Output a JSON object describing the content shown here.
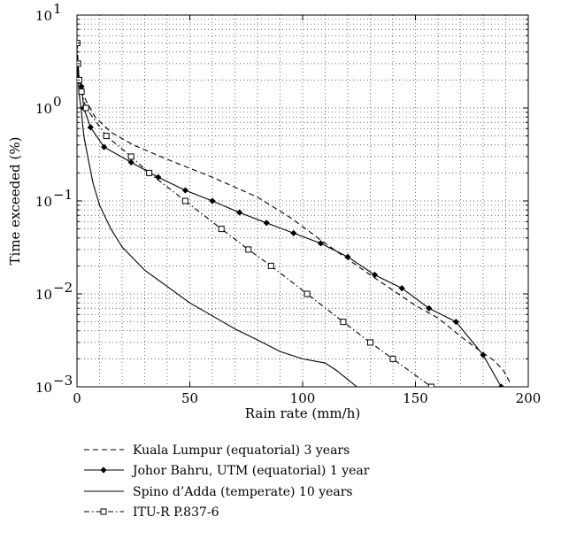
{
  "chart_data": {
    "type": "line",
    "title": "",
    "xlabel": "Rain rate (mm/h)",
    "ylabel": "Time exceeded (%)",
    "xlim": [
      0,
      200
    ],
    "ylim": [
      0.001,
      10
    ],
    "yscale": "log",
    "grid": true,
    "legend_position": "below",
    "x_ticks": [
      {
        "value": 0,
        "label": "0"
      },
      {
        "value": 50,
        "label": "50"
      },
      {
        "value": 100,
        "label": "100"
      },
      {
        "value": 150,
        "label": "150"
      },
      {
        "value": 200,
        "label": "200"
      }
    ],
    "y_ticks": [
      {
        "value": 10,
        "base": "10",
        "exp": "1"
      },
      {
        "value": 1,
        "base": "10",
        "exp": "0"
      },
      {
        "value": 0.1,
        "base": "10",
        "exp": "−1"
      },
      {
        "value": 0.01,
        "base": "10",
        "exp": "−2"
      },
      {
        "value": 0.001,
        "base": "10",
        "exp": "−3"
      }
    ],
    "series": [
      {
        "name": "Kuala Lumpur (equatorial) 3 years",
        "line_style": "dashed",
        "marker": "none",
        "x": [
          0.3,
          1,
          2,
          4,
          8,
          15,
          25,
          40,
          60,
          80,
          95,
          110,
          130,
          150,
          160,
          170,
          178,
          185,
          189,
          192
        ],
        "y": [
          3.0,
          2.0,
          1.6,
          1.2,
          0.8,
          0.55,
          0.4,
          0.28,
          0.18,
          0.11,
          0.065,
          0.035,
          0.016,
          0.0075,
          0.0055,
          0.0035,
          0.0025,
          0.0019,
          0.0015,
          0.0011
        ]
      },
      {
        "name": "Johor Bahru, UTM (equatorial) 1 year",
        "line_style": "solid",
        "marker": "diamond",
        "x": [
          0.3,
          1,
          2,
          3,
          6,
          12,
          24,
          36,
          48,
          60,
          72,
          84,
          96,
          108,
          120,
          132,
          144,
          156,
          168,
          180,
          188
        ],
        "y": [
          3.0,
          2.0,
          1.7,
          1.0,
          0.62,
          0.38,
          0.26,
          0.18,
          0.13,
          0.1,
          0.075,
          0.058,
          0.045,
          0.035,
          0.025,
          0.016,
          0.0115,
          0.007,
          0.005,
          0.0022,
          0.001
        ]
      },
      {
        "name": "Spino d’Adda (temperate) 10 years",
        "line_style": "solid",
        "marker": "none",
        "x": [
          0.2,
          0.5,
          1,
          2,
          3,
          5,
          7,
          10,
          15,
          20,
          30,
          40,
          50,
          60,
          70,
          80,
          90,
          100,
          110,
          115,
          120,
          124
        ],
        "y": [
          3.0,
          2.0,
          1.4,
          0.9,
          0.5,
          0.28,
          0.16,
          0.09,
          0.05,
          0.032,
          0.018,
          0.012,
          0.008,
          0.0058,
          0.0042,
          0.0032,
          0.0024,
          0.002,
          0.0018,
          0.0015,
          0.0012,
          0.001
        ]
      },
      {
        "name": "ITU-R P.837-6",
        "line_style": "dashdot",
        "marker": "square",
        "x": [
          0.1,
          0.5,
          1,
          2,
          4,
          13,
          24,
          32,
          48,
          64,
          76,
          86,
          102,
          118,
          130,
          140,
          157
        ],
        "y": [
          5.0,
          3.0,
          2.0,
          1.5,
          1.0,
          0.5,
          0.3,
          0.2,
          0.1,
          0.05,
          0.03,
          0.02,
          0.01,
          0.005,
          0.003,
          0.002,
          0.001
        ]
      }
    ]
  }
}
